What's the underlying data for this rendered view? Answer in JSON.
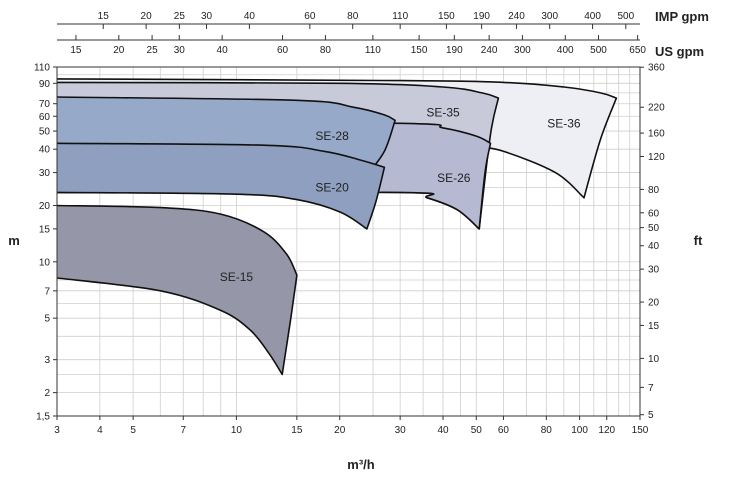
{
  "chart_data": {
    "type": "area",
    "title": "",
    "xlabel": "m³/h",
    "ylabel": "m",
    "ylabel_right": "ft",
    "x_scale": "log",
    "y_scale": "log",
    "xlim": [
      3,
      150
    ],
    "ylim": [
      1.5,
      110
    ],
    "grid": true,
    "x_ticks": [
      3,
      4,
      5,
      7,
      10,
      15,
      20,
      30,
      40,
      50,
      60,
      80,
      100,
      120,
      150
    ],
    "x_tick_labels": [
      "3",
      "4",
      "5",
      "7",
      "10",
      "15",
      "20",
      "30",
      "40",
      "50",
      "60",
      "80",
      "100",
      "120",
      "150"
    ],
    "y_ticks": [
      1.5,
      2,
      3,
      5,
      7,
      10,
      15,
      20,
      30,
      40,
      50,
      60,
      70,
      90,
      110
    ],
    "y_tick_labels": [
      "1,5",
      "2",
      "3",
      "5",
      "7",
      "10",
      "15",
      "20",
      "30",
      "40",
      "50",
      "60",
      "70",
      "90",
      "110"
    ],
    "ft_ticks": [
      5,
      7,
      10,
      15,
      20,
      30,
      40,
      50,
      60,
      80,
      120,
      160,
      220,
      360
    ],
    "ft_tick_labels": [
      "5",
      "7",
      "10",
      "15",
      "20",
      "30",
      "40",
      "50",
      "60",
      "80",
      "120",
      "160",
      "220",
      "360"
    ],
    "ft_per_m": 3.2808,
    "us_gpm_label": "US gpm",
    "us_gpm_ticks": [
      15,
      20,
      25,
      30,
      40,
      60,
      80,
      110,
      150,
      190,
      240,
      300,
      400,
      500,
      650
    ],
    "us_gpm_tick_labels": [
      "15",
      "20",
      "25",
      "30",
      "40",
      "60",
      "80",
      "110",
      "150",
      "190",
      "240",
      "300",
      "400",
      "500",
      "650"
    ],
    "us_gpm_per_m3h": 4.4029,
    "imp_gpm_label": "IMP gpm",
    "imp_gpm_ticks": [
      15,
      20,
      25,
      30,
      40,
      60,
      80,
      110,
      150,
      190,
      240,
      300,
      400,
      500
    ],
    "imp_gpm_tick_labels": [
      "15",
      "20",
      "25",
      "30",
      "40",
      "60",
      "80",
      "110",
      "150",
      "190",
      "240",
      "300",
      "400",
      "500"
    ],
    "imp_gpm_per_m3h": 3.6662,
    "series": [
      {
        "name": "SE-36",
        "color": "#eeeff4",
        "upper": [
          [
            3,
            95
          ],
          [
            30,
            93
          ],
          [
            60,
            91
          ],
          [
            90,
            86
          ],
          [
            115,
            80
          ],
          [
            128,
            75
          ]
        ],
        "right": [
          [
            128,
            75
          ],
          [
            115,
            45
          ],
          [
            103,
            22
          ]
        ],
        "lower": [
          [
            103,
            22
          ],
          [
            85,
            30
          ],
          [
            60,
            39
          ],
          [
            50,
            41
          ],
          [
            40,
            42
          ],
          [
            3,
            42
          ]
        ]
      },
      {
        "name": "SE-35",
        "color": "#c8cad9",
        "upper": [
          [
            3,
            91
          ],
          [
            20,
            90
          ],
          [
            40,
            86
          ],
          [
            52,
            80
          ],
          [
            58,
            75
          ]
        ],
        "right": [
          [
            58,
            75
          ],
          [
            55,
            48
          ],
          [
            51,
            15
          ]
        ],
        "lower": [
          [
            51,
            15
          ],
          [
            44,
            19
          ],
          [
            36,
            22
          ],
          [
            30,
            23.5
          ],
          [
            3,
            23.5
          ]
        ]
      },
      {
        "name": "SE-26",
        "color": "#b5bad2",
        "upper": [
          [
            3,
            57
          ],
          [
            30,
            55
          ],
          [
            40,
            52
          ],
          [
            50,
            47
          ],
          [
            55,
            43
          ]
        ],
        "right": [
          [
            55,
            43
          ],
          [
            53,
            30
          ],
          [
            51,
            15
          ]
        ],
        "lower": [
          [
            51,
            15
          ],
          [
            44,
            19
          ],
          [
            36,
            22
          ],
          [
            30,
            23.5
          ],
          [
            3,
            23.5
          ]
        ]
      },
      {
        "name": "SE-28",
        "color": "#97a9c8",
        "upper": [
          [
            3,
            76
          ],
          [
            15,
            73
          ],
          [
            22,
            67
          ],
          [
            27,
            61
          ],
          [
            29,
            57
          ]
        ],
        "right": [
          [
            29,
            57
          ],
          [
            27,
            39
          ],
          [
            24,
            29
          ]
        ],
        "lower": [
          [
            24,
            29
          ],
          [
            20,
            33
          ],
          [
            15,
            38
          ],
          [
            10,
            40
          ],
          [
            3,
            41
          ]
        ]
      },
      {
        "name": "SE-20",
        "color": "#8e9fc0",
        "upper": [
          [
            3,
            43
          ],
          [
            12,
            42
          ],
          [
            18,
            39
          ],
          [
            23,
            35
          ],
          [
            27,
            32
          ]
        ],
        "right": [
          [
            27,
            32
          ],
          [
            25.5,
            21
          ],
          [
            24,
            15
          ]
        ],
        "lower": [
          [
            24,
            15
          ],
          [
            20,
            18.5
          ],
          [
            15,
            21.5
          ],
          [
            10,
            23
          ],
          [
            3,
            23.5
          ]
        ]
      },
      {
        "name": "SE-15",
        "color": "#9597a8",
        "upper": [
          [
            3,
            20
          ],
          [
            6,
            19.5
          ],
          [
            9,
            18
          ],
          [
            12,
            14.5
          ],
          [
            14,
            11
          ],
          [
            15,
            8.5
          ]
        ],
        "right": [
          [
            15,
            8.5
          ],
          [
            14.4,
            5
          ],
          [
            13.6,
            2.5
          ]
        ],
        "lower": [
          [
            13.6,
            2.5
          ],
          [
            12.5,
            3.2
          ],
          [
            11,
            4.3
          ],
          [
            9,
            5.5
          ],
          [
            6,
            7
          ],
          [
            3,
            8.2
          ]
        ]
      }
    ],
    "labels": [
      {
        "text": "SE-36",
        "x": 90,
        "y": 55
      },
      {
        "text": "SE-35",
        "x": 40,
        "y": 63
      },
      {
        "text": "SE-28",
        "x": 19,
        "y": 47
      },
      {
        "text": "SE-26",
        "x": 43,
        "y": 28
      },
      {
        "text": "SE-20",
        "x": 19,
        "y": 25
      },
      {
        "text": "SE-15",
        "x": 10,
        "y": 8.3
      }
    ]
  }
}
